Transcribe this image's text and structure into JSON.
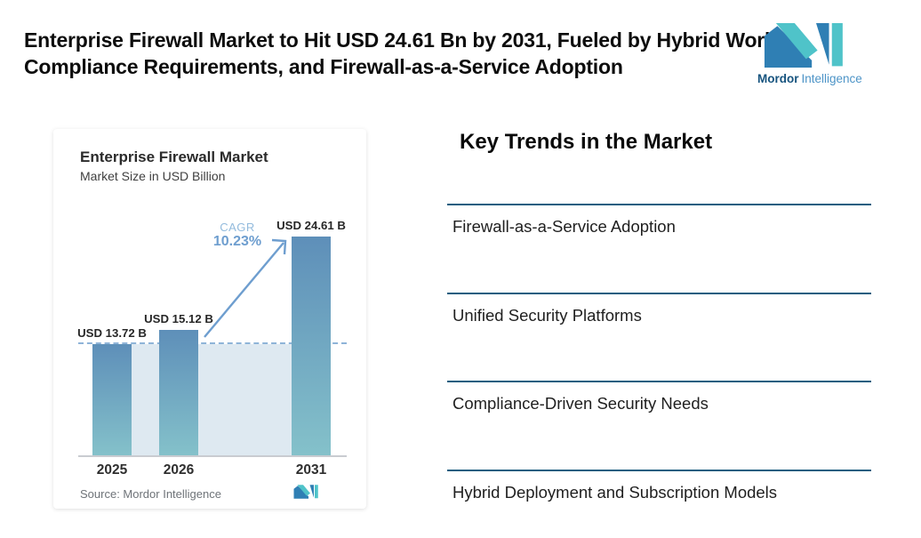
{
  "header": {
    "title": "Enterprise Firewall Market to Hit USD 24.61 Bn by 2031, Fueled by Hybrid Work, Compliance Requirements, and Firewall-as-a-Service Adoption",
    "logo": {
      "brand_bold": "Mordor",
      "brand_light": "Intelligence",
      "teal": "#4FC3C9",
      "blue": "#2F7FB4",
      "text_dark": "#16537E",
      "text_light": "#4D94C7"
    }
  },
  "chart_card": {
    "title": "Enterprise Firewall Market",
    "subtitle": "Market Size in USD Billion",
    "source": "Source: Mordor Intelligence"
  },
  "chart_data": {
    "type": "bar",
    "title": "Enterprise Firewall Market",
    "subtitle": "Market Size in USD Billion",
    "categories": [
      "2025",
      "2026",
      "2031"
    ],
    "values": [
      13.72,
      15.12,
      24.61
    ],
    "value_labels": [
      "USD 13.72 B",
      "USD 15.12 B",
      "USD 24.61 B"
    ],
    "ylabel": "Market Size in USD Billion",
    "xlabel": "",
    "grid": false,
    "legend": false,
    "annotations": [
      {
        "label": "CAGR",
        "value": "10.23%"
      }
    ],
    "reference_line": {
      "style": "dashed",
      "at": 13.72
    },
    "colors": {
      "bar_top": "#5E8FB9",
      "bar_bottom": "#84C1CA",
      "band_fill": "#DEE9F1",
      "dashed_line": "#8FB4D8",
      "arrow": "#6E9ECF",
      "cagr_text": "#6E9ECF"
    },
    "source": "Source: Mordor Intelligence"
  },
  "trends": {
    "heading": "Key Trends in the Market",
    "separator_color": "#1A5E80",
    "items": [
      "Firewall-as-a-Service Adoption",
      "Unified Security Platforms",
      "Compliance-Driven Security Needs",
      "Hybrid Deployment and Subscription Models"
    ]
  }
}
